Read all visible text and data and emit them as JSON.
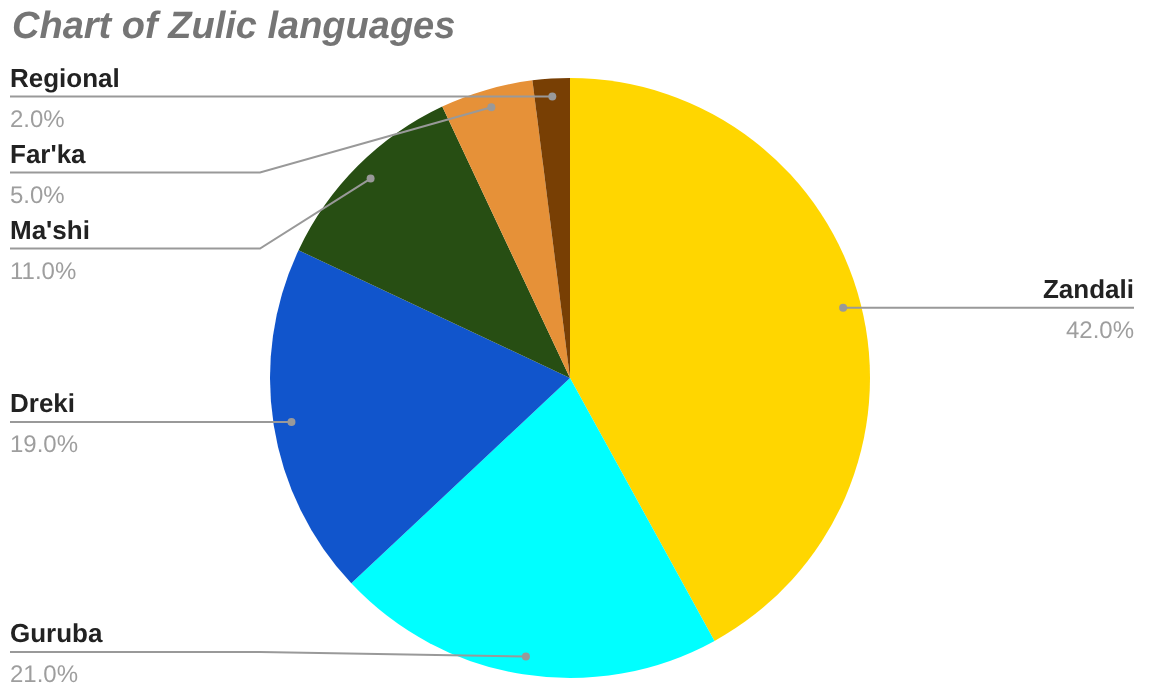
{
  "chart_data": {
    "type": "pie",
    "title": "Chart of Zulic languages",
    "categories": [
      "Zandali",
      "Guruba",
      "Dreki",
      "Ma'shi",
      "Far'ka",
      "Regional"
    ],
    "values": [
      42,
      21,
      19,
      11,
      5,
      2
    ],
    "colors": [
      "#ffd600",
      "#00ffff",
      "#1155cc",
      "#274e13",
      "#e69138",
      "#783f04"
    ],
    "value_labels": [
      "42.0%",
      "21.0%",
      "19.0%",
      "11.0%",
      "5.0%",
      "2.0%"
    ]
  }
}
